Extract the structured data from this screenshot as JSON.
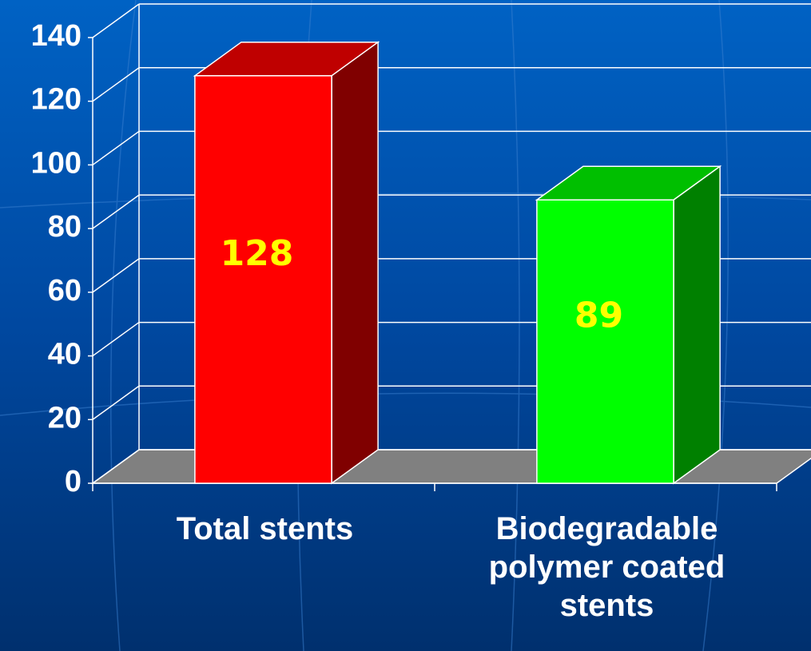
{
  "chart_data": {
    "type": "bar",
    "categories": [
      "Total stents",
      "Biodegradable polymer coated stents"
    ],
    "values": [
      128,
      89
    ],
    "colors": [
      "#ff0000",
      "#00ff00"
    ],
    "value_label_color": "#ffff00",
    "ylim": [
      0,
      140
    ],
    "yticks": [
      0,
      20,
      40,
      60,
      80,
      100,
      120,
      140
    ],
    "grid": true
  }
}
